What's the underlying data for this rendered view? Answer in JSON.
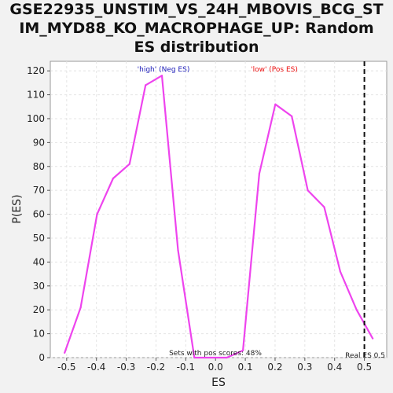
{
  "chart_data": {
    "type": "line",
    "title_lines": [
      "GSE22935_UNSTIM_VS_24H_MBOVIS_BCG_ST",
      "IM_MYD88_KO_MACROPHAGE_UP: Random",
      "ES distribution"
    ],
    "xlabel": "ES",
    "ylabel": "P(ES)",
    "xlim": [
      -0.555,
      0.575
    ],
    "ylim": [
      0,
      124
    ],
    "xticks": [
      -0.5,
      -0.4,
      -0.3,
      -0.2,
      -0.1,
      0.0,
      0.1,
      0.2,
      0.3,
      0.4,
      0.5
    ],
    "yticks": [
      0,
      10,
      20,
      30,
      40,
      50,
      60,
      70,
      80,
      90,
      100,
      110,
      120
    ],
    "grid": true,
    "series": [
      {
        "color": "#ee44ee",
        "x": [
          -0.507,
          -0.453,
          -0.398,
          -0.344,
          -0.289,
          -0.235,
          -0.18,
          -0.126,
          -0.071,
          -0.017,
          0.038,
          0.092,
          0.147,
          0.201,
          0.256,
          0.31,
          0.365,
          0.419,
          0.474,
          0.528
        ],
        "y": [
          2,
          21,
          60,
          75,
          81,
          114,
          118,
          45,
          0,
          0,
          0,
          3,
          77,
          106,
          101,
          70,
          63,
          36,
          20,
          8
        ]
      }
    ],
    "real_es": 0.5,
    "annotations": {
      "neg_label": "'high' (Neg ES)",
      "pos_label": "'low' (Pos ES)",
      "sets_label": "Sets with pos scores: 48%",
      "real_es_label": "Real ES 0.5"
    },
    "colors": {
      "neg": "#2222bb",
      "pos": "#ee1111",
      "line": "#ee44ee"
    }
  }
}
